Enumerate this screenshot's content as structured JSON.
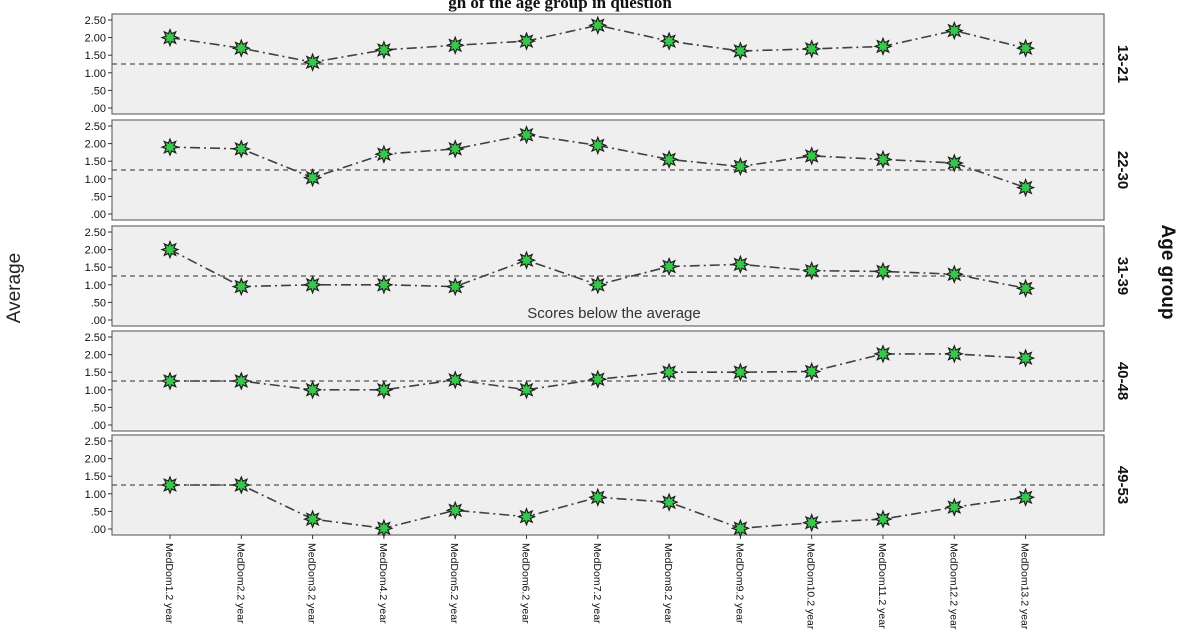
{
  "chart_data": {
    "type": "line",
    "title": "... age of the age group in question ...",
    "title_visible": "gh of the age group in question",
    "ylabel": "Average",
    "facet_title": "Age group",
    "ylim": [
      0,
      2.5
    ],
    "yticks": [
      ".00",
      ".50",
      "1.00",
      "1.50",
      "2.00",
      "2.50"
    ],
    "reference_line": 1.25,
    "annotation": "Scores below the average",
    "categories": [
      "MedDom1.2 year",
      "MedDom2.2 year",
      "MedDom3.2 year",
      "MedDom4.2 year",
      "MedDom5.2 year",
      "MedDom6.2 year",
      "MedDom7.2 year",
      "MedDom8.2 year",
      "MedDom9.2 year",
      "MedDom10.2 year",
      "MedDom11.2 year",
      "MedDom12.2 year",
      "MedDom13.2 year"
    ],
    "series": [
      {
        "name": "13-21",
        "values": [
          2.0,
          1.7,
          1.3,
          1.65,
          1.78,
          1.9,
          2.35,
          1.9,
          1.62,
          1.68,
          1.75,
          2.2,
          1.7
        ]
      },
      {
        "name": "22-30",
        "values": [
          1.9,
          1.85,
          1.03,
          1.7,
          1.85,
          2.25,
          1.95,
          1.55,
          1.35,
          1.65,
          1.55,
          1.45,
          0.75
        ]
      },
      {
        "name": "31-39",
        "values": [
          2.0,
          0.95,
          1.0,
          1.0,
          0.95,
          1.7,
          1.0,
          1.52,
          1.58,
          1.4,
          1.38,
          1.3,
          0.9
        ]
      },
      {
        "name": "40-48",
        "values": [
          1.25,
          1.25,
          1.0,
          1.0,
          1.28,
          1.0,
          1.3,
          1.5,
          1.5,
          1.52,
          2.02,
          2.02,
          1.9
        ]
      },
      {
        "name": "49-53",
        "values": [
          1.25,
          1.25,
          0.28,
          0.02,
          0.53,
          0.35,
          0.9,
          0.76,
          0.02,
          0.18,
          0.28,
          0.62,
          0.9
        ]
      }
    ],
    "colors": {
      "panel_bg": "#efefef",
      "panel_border": "#6b6b6b",
      "line": "#404040",
      "marker_fill": "#37c84a",
      "marker_stroke": "#1f1f1f",
      "ref_line": "#555555"
    }
  }
}
